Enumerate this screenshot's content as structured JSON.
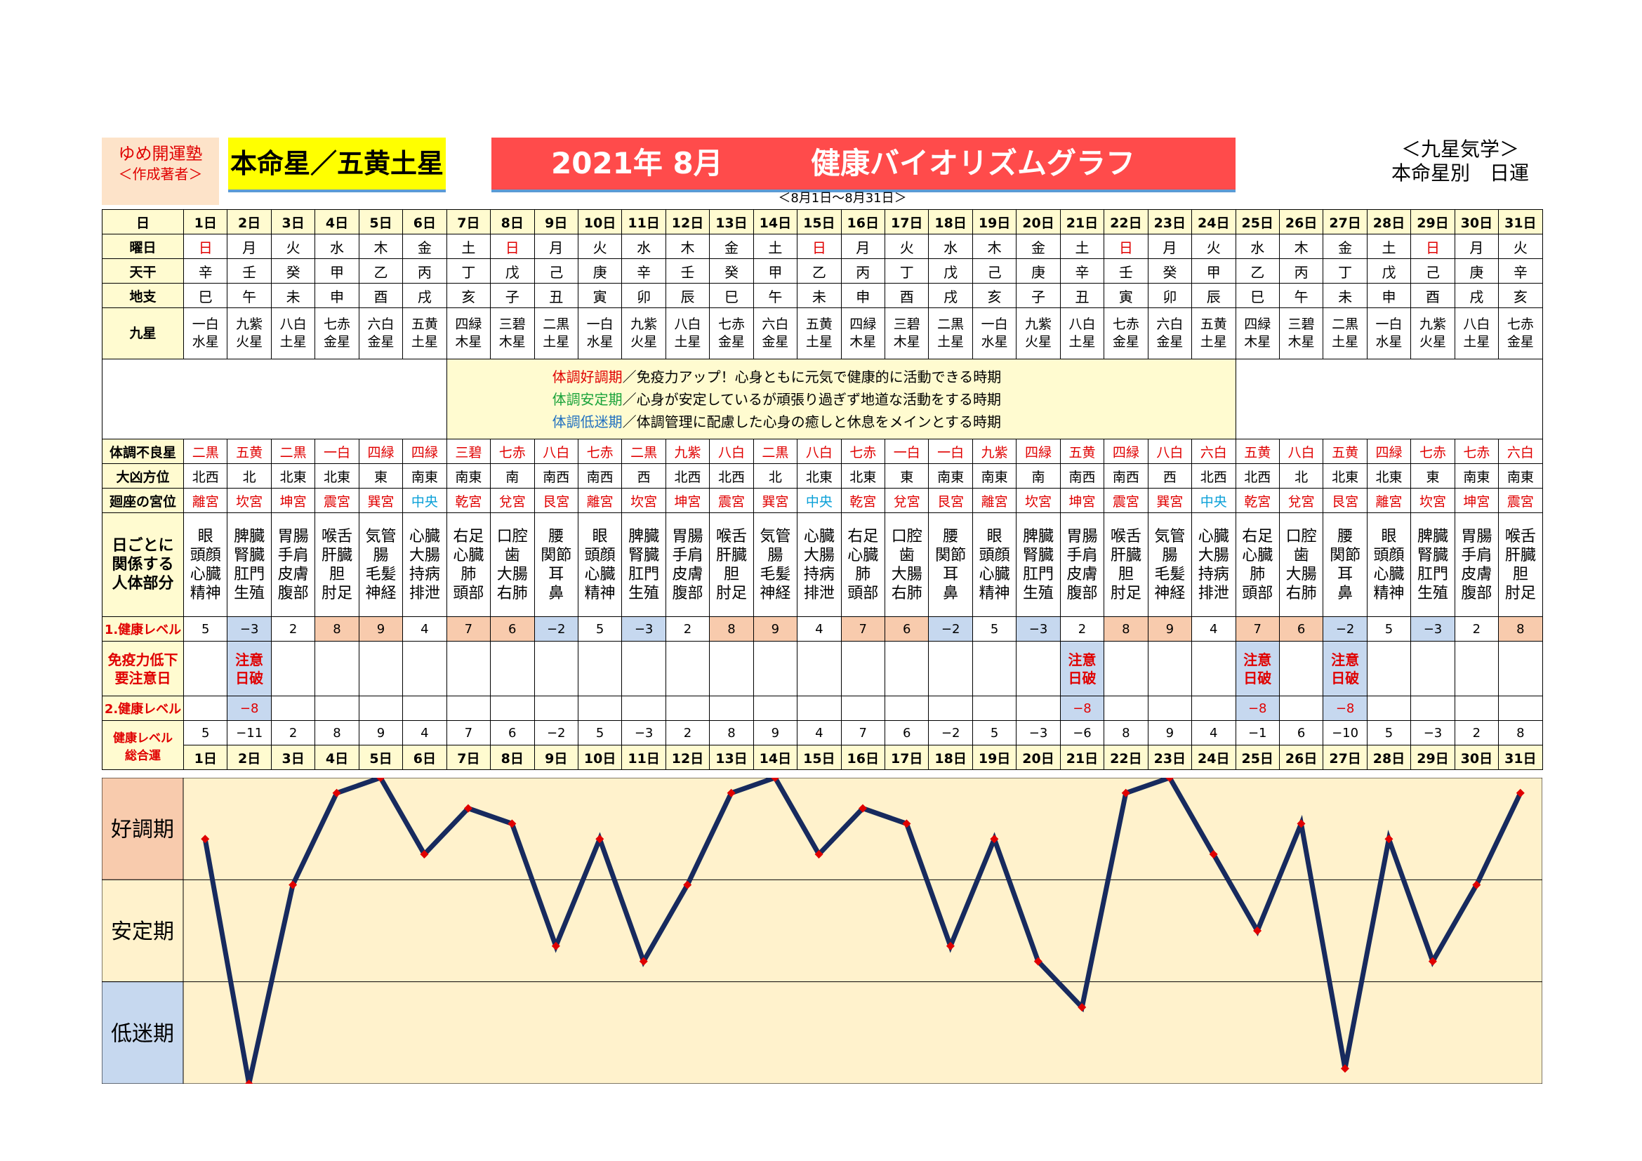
{
  "header": {
    "brand_line1": "ゆめ開運塾",
    "brand_line2": "＜作成著者＞",
    "honmei": "本命星／五黄土星",
    "title_year": "2021年 8月",
    "title_text": "健康バイオリズムグラフ",
    "right_line1": "＜九星気学＞",
    "right_line2": "本命星別　日運",
    "range": "＜8月1日～8月31日＞"
  },
  "labels": {
    "day": "日",
    "weekday": "曜日",
    "kan": "天干",
    "shi": "地支",
    "star": "九星",
    "bad_star": "体調不良星",
    "direction": "大凶方位",
    "palace": "廻座の宮位",
    "organ_1": "日ごとに",
    "organ_2": "関係する",
    "organ_3": "人体部分",
    "level1": "1.健康レベル",
    "imm_1": "免疫力低下",
    "imm_2": "要注意日",
    "level2": "2.健康レベル",
    "total_1": "健康レベル",
    "total_2": "総合運"
  },
  "description": {
    "line1_key": "体調好調期",
    "line1_text": "／免疫力アップ！心身ともに元気で健康的に活動できる時期",
    "line2_key": "体調安定期",
    "line2_text": "／心身が安定しているが頑張り過ぎず地道な活動をする時期",
    "line3_key": "体調低迷期",
    "line3_text": "／体調管理に配慮した心身の癒しと休息をメインとする時期"
  },
  "days": [
    "1日",
    "2日",
    "3日",
    "4日",
    "5日",
    "6日",
    "7日",
    "8日",
    "9日",
    "10日",
    "11日",
    "12日",
    "13日",
    "14日",
    "15日",
    "16日",
    "17日",
    "18日",
    "19日",
    "20日",
    "21日",
    "22日",
    "23日",
    "24日",
    "25日",
    "26日",
    "27日",
    "28日",
    "29日",
    "30日",
    "31日"
  ],
  "weekdays": [
    "日",
    "月",
    "火",
    "水",
    "木",
    "金",
    "土",
    "日",
    "月",
    "火",
    "水",
    "木",
    "金",
    "土",
    "日",
    "月",
    "火",
    "水",
    "木",
    "金",
    "土",
    "日",
    "月",
    "火",
    "水",
    "木",
    "金",
    "土",
    "日",
    "月",
    "火"
  ],
  "kan": [
    "辛",
    "壬",
    "癸",
    "甲",
    "乙",
    "丙",
    "丁",
    "戊",
    "己",
    "庚",
    "辛",
    "壬",
    "癸",
    "甲",
    "乙",
    "丙",
    "丁",
    "戊",
    "己",
    "庚",
    "辛",
    "壬",
    "癸",
    "甲",
    "乙",
    "丙",
    "丁",
    "戊",
    "己",
    "庚",
    "辛"
  ],
  "shi": [
    "巳",
    "午",
    "未",
    "申",
    "酉",
    "戌",
    "亥",
    "子",
    "丑",
    "寅",
    "卯",
    "辰",
    "巳",
    "午",
    "未",
    "申",
    "酉",
    "戌",
    "亥",
    "子",
    "丑",
    "寅",
    "卯",
    "辰",
    "巳",
    "午",
    "未",
    "申",
    "酉",
    "戌",
    "亥"
  ],
  "stars": [
    [
      "一白",
      "水星"
    ],
    [
      "九紫",
      "火星"
    ],
    [
      "八白",
      "土星"
    ],
    [
      "七赤",
      "金星"
    ],
    [
      "六白",
      "金星"
    ],
    [
      "五黄",
      "土星"
    ],
    [
      "四緑",
      "木星"
    ],
    [
      "三碧",
      "木星"
    ],
    [
      "二黒",
      "土星"
    ],
    [
      "一白",
      "水星"
    ],
    [
      "九紫",
      "火星"
    ],
    [
      "八白",
      "土星"
    ],
    [
      "七赤",
      "金星"
    ],
    [
      "六白",
      "金星"
    ],
    [
      "五黄",
      "土星"
    ],
    [
      "四緑",
      "木星"
    ],
    [
      "三碧",
      "木星"
    ],
    [
      "二黒",
      "土星"
    ],
    [
      "一白",
      "水星"
    ],
    [
      "九紫",
      "火星"
    ],
    [
      "八白",
      "土星"
    ],
    [
      "七赤",
      "金星"
    ],
    [
      "六白",
      "金星"
    ],
    [
      "五黄",
      "土星"
    ],
    [
      "四緑",
      "木星"
    ],
    [
      "三碧",
      "木星"
    ],
    [
      "二黒",
      "土星"
    ],
    [
      "一白",
      "水星"
    ],
    [
      "九紫",
      "火星"
    ],
    [
      "八白",
      "土星"
    ],
    [
      "七赤",
      "金星"
    ]
  ],
  "bad_stars": [
    "二黒",
    "五黄",
    "二黒",
    "一白",
    "四緑",
    "四緑",
    "三碧",
    "七赤",
    "八白",
    "七赤",
    "二黒",
    "九紫",
    "八白",
    "二黒",
    "八白",
    "七赤",
    "一白",
    "一白",
    "九紫",
    "四緑",
    "五黄",
    "四緑",
    "八白",
    "六白",
    "五黄",
    "八白",
    "五黄",
    "四緑",
    "七赤",
    "七赤",
    "六白"
  ],
  "directions": [
    "北西",
    "北",
    "北東",
    "北東",
    "東",
    "南東",
    "南東",
    "南",
    "南西",
    "南西",
    "西",
    "北西",
    "北西",
    "北",
    "北東",
    "北東",
    "東",
    "南東",
    "南東",
    "南",
    "南西",
    "南西",
    "西",
    "北西",
    "北西",
    "北",
    "北東",
    "北東",
    "東",
    "南東",
    "南東"
  ],
  "palaces": [
    "離宮",
    "坎宮",
    "坤宮",
    "震宮",
    "巽宮",
    "中央",
    "乾宮",
    "兌宮",
    "艮宮",
    "離宮",
    "坎宮",
    "坤宮",
    "震宮",
    "巽宮",
    "中央",
    "乾宮",
    "兌宮",
    "艮宮",
    "離宮",
    "坎宮",
    "坤宮",
    "震宮",
    "巽宮",
    "中央",
    "乾宮",
    "兌宮",
    "艮宮",
    "離宮",
    "坎宮",
    "坤宮",
    "震宮"
  ],
  "organs": [
    [
      "眼",
      "頭顔",
      "心臓",
      "精神"
    ],
    [
      "脾臓",
      "腎臓",
      "肛門",
      "生殖"
    ],
    [
      "胃腸",
      "手肩",
      "皮膚",
      "腹部"
    ],
    [
      "喉舌",
      "肝臓",
      "胆",
      "肘足"
    ],
    [
      "気管",
      "腸",
      "毛髪",
      "神経"
    ],
    [
      "心臓",
      "大腸",
      "持病",
      "排泄"
    ],
    [
      "右足",
      "心臓",
      "肺",
      "頭部"
    ],
    [
      "口腔",
      "歯",
      "大腸",
      "右肺"
    ],
    [
      "腰",
      "関節",
      "耳",
      "鼻"
    ],
    [
      "眼",
      "頭顔",
      "心臓",
      "精神"
    ],
    [
      "脾臓",
      "腎臓",
      "肛門",
      "生殖"
    ],
    [
      "胃腸",
      "手肩",
      "皮膚",
      "腹部"
    ],
    [
      "喉舌",
      "肝臓",
      "胆",
      "肘足"
    ],
    [
      "気管",
      "腸",
      "毛髪",
      "神経"
    ],
    [
      "心臓",
      "大腸",
      "持病",
      "排泄"
    ],
    [
      "右足",
      "心臓",
      "肺",
      "頭部"
    ],
    [
      "口腔",
      "歯",
      "大腸",
      "右肺"
    ],
    [
      "腰",
      "関節",
      "耳",
      "鼻"
    ],
    [
      "眼",
      "頭顔",
      "心臓",
      "精神"
    ],
    [
      "脾臓",
      "腎臓",
      "肛門",
      "生殖"
    ],
    [
      "胃腸",
      "手肩",
      "皮膚",
      "腹部"
    ],
    [
      "喉舌",
      "肝臓",
      "胆",
      "肘足"
    ],
    [
      "気管",
      "腸",
      "毛髪",
      "神経"
    ],
    [
      "心臓",
      "大腸",
      "持病",
      "排泄"
    ],
    [
      "右足",
      "心臓",
      "肺",
      "頭部"
    ],
    [
      "口腔",
      "歯",
      "大腸",
      "右肺"
    ],
    [
      "腰",
      "関節",
      "耳",
      "鼻"
    ],
    [
      "眼",
      "頭顔",
      "心臓",
      "精神"
    ],
    [
      "脾臓",
      "腎臓",
      "肛門",
      "生殖"
    ],
    [
      "胃腸",
      "手肩",
      "皮膚",
      "腹部"
    ],
    [
      "喉舌",
      "肝臓",
      "胆",
      "肘足"
    ]
  ],
  "level1": [
    "5",
    "−3",
    "2",
    "8",
    "9",
    "4",
    "7",
    "6",
    "−2",
    "5",
    "−3",
    "2",
    "8",
    "9",
    "4",
    "7",
    "6",
    "−2",
    "5",
    "−3",
    "2",
    "8",
    "9",
    "4",
    "7",
    "6",
    "−2",
    "5",
    "−3",
    "2",
    "8"
  ],
  "immunity": [
    "",
    "注意日破",
    "",
    "",
    "",
    "",
    "",
    "",
    "",
    "",
    "",
    "",
    "",
    "",
    "",
    "",
    "",
    "",
    "",
    "",
    "注意日破",
    "",
    "",
    "",
    "注意日破",
    "",
    "注意日破",
    "",
    "",
    "",
    ""
  ],
  "level2": [
    "",
    "−8",
    "",
    "",
    "",
    "",
    "",
    "",
    "",
    "",
    "",
    "",
    "",
    "",
    "",
    "",
    "",
    "",
    "",
    "",
    "−8",
    "",
    "",
    "",
    "−8",
    "",
    "−8",
    "",
    "",
    "",
    ""
  ],
  "total": [
    "5",
    "−11",
    "2",
    "8",
    "9",
    "4",
    "7",
    "6",
    "−2",
    "5",
    "−3",
    "2",
    "8",
    "9",
    "4",
    "7",
    "6",
    "−2",
    "5",
    "−3",
    "−6",
    "8",
    "9",
    "4",
    "−1",
    "6",
    "−10",
    "5",
    "−3",
    "2",
    "8"
  ],
  "colors": {
    "red": "#e00000",
    "cyan": "#0aa0d8",
    "positive_cell": "#f8cbad",
    "negative_cell": "#c6d8ef",
    "line": "#172a5e",
    "marker": "#e00000",
    "chart_bg": "#fff2cc"
  },
  "chart_data": {
    "type": "line",
    "categories": [
      "1日",
      "2日",
      "3日",
      "4日",
      "5日",
      "6日",
      "7日",
      "8日",
      "9日",
      "10日",
      "11日",
      "12日",
      "13日",
      "14日",
      "15日",
      "16日",
      "17日",
      "18日",
      "19日",
      "20日",
      "21日",
      "22日",
      "23日",
      "24日",
      "25日",
      "26日",
      "27日",
      "28日",
      "29日",
      "30日",
      "31日"
    ],
    "series": [
      {
        "values": [
          5,
          -11,
          2,
          8,
          9,
          4,
          7,
          6,
          -2,
          5,
          -3,
          2,
          8,
          9,
          4,
          7,
          6,
          -2,
          5,
          -3,
          -6,
          8,
          9,
          4,
          -1,
          6,
          -10,
          5,
          -3,
          2,
          8
        ]
      }
    ],
    "ylim": [
      -11,
      9
    ],
    "bands": [
      "好調期",
      "安定期",
      "低迷期"
    ],
    "grid": true
  }
}
